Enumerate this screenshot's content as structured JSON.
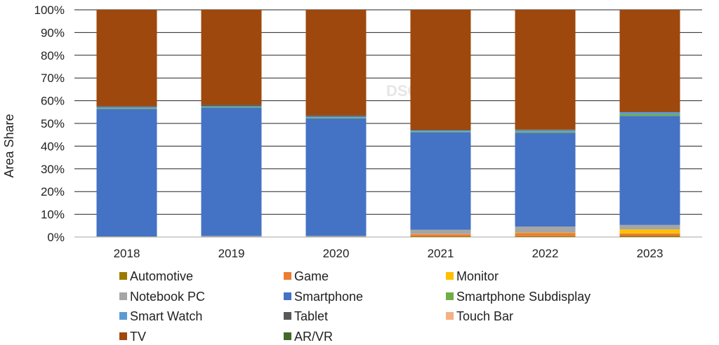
{
  "chart_data": {
    "type": "bar",
    "stacked": true,
    "normalized": true,
    "categories": [
      "2018",
      "2019",
      "2020",
      "2021",
      "2022",
      "2023"
    ],
    "ylabel": "Area Share",
    "xlabel": "",
    "title": "",
    "ylim": [
      0,
      100
    ],
    "y_ticks": [
      "0%",
      "10%",
      "20%",
      "30%",
      "40%",
      "50%",
      "60%",
      "70%",
      "80%",
      "90%",
      "100%"
    ],
    "grid": true,
    "legend_position": "bottom",
    "watermark": "DSCC",
    "series": [
      {
        "name": "Automotive",
        "color": "#9C7A00",
        "values": [
          0.0,
          0.0,
          0.0,
          0.3,
          0.4,
          0.6
        ]
      },
      {
        "name": "Game",
        "color": "#ED7D31",
        "values": [
          0.0,
          0.0,
          0.0,
          0.9,
          1.3,
          1.0
        ]
      },
      {
        "name": "Monitor",
        "color": "#FFC000",
        "values": [
          0.0,
          0.0,
          0.0,
          0.1,
          0.2,
          1.7
        ]
      },
      {
        "name": "Notebook PC",
        "color": "#A5A5A5",
        "values": [
          0.3,
          0.5,
          0.5,
          1.9,
          2.7,
          2.0
        ]
      },
      {
        "name": "Smartphone",
        "color": "#4472C4",
        "values": [
          56.1,
          56.3,
          51.7,
          42.9,
          41.3,
          48.0
        ]
      },
      {
        "name": "Smartphone Subdisplay",
        "color": "#70AD47",
        "values": [
          0.3,
          0.3,
          0.3,
          0.3,
          0.5,
          0.7
        ]
      },
      {
        "name": "Smart Watch",
        "color": "#5B9BD5",
        "values": [
          0.5,
          0.5,
          0.5,
          0.5,
          0.6,
          0.9
        ]
      },
      {
        "name": "Tablet",
        "color": "#595959",
        "values": [
          0.4,
          0.6,
          0.6,
          0.3,
          0.3,
          0.2
        ]
      },
      {
        "name": "Touch Bar",
        "color": "#F4B183",
        "values": [
          0.0,
          0.0,
          0.0,
          0.0,
          0.0,
          0.0
        ]
      },
      {
        "name": "TV",
        "color": "#9E480E",
        "values": [
          42.4,
          41.8,
          46.4,
          52.8,
          52.7,
          44.9
        ]
      },
      {
        "name": "AR/VR",
        "color": "#43682B",
        "values": [
          0.0,
          0.0,
          0.0,
          0.0,
          0.0,
          0.0
        ]
      }
    ]
  }
}
